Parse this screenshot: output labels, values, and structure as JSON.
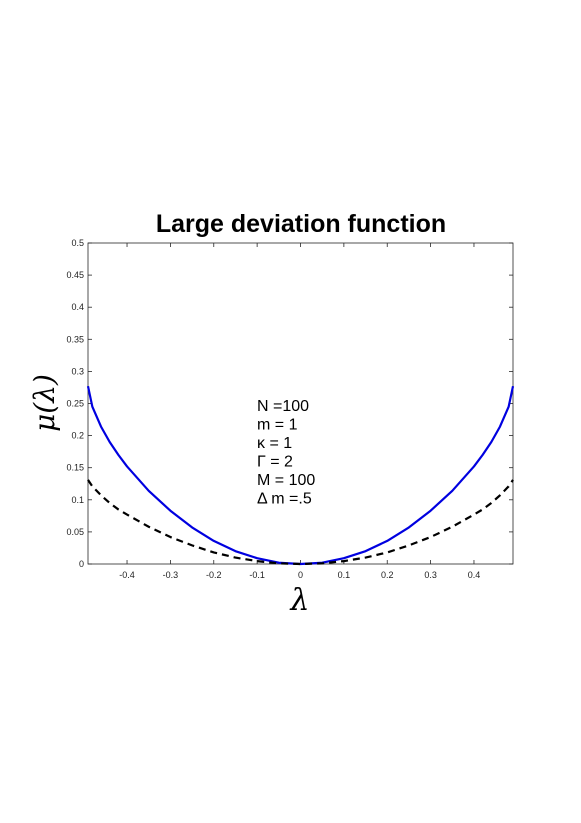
{
  "chart_data": {
    "type": "line",
    "title": "Large deviation function",
    "xlabel": "λ",
    "ylabel": "μ(λ)",
    "xlim": [
      -0.49,
      0.49
    ],
    "ylim": [
      0,
      0.5
    ],
    "xticks": [
      -0.4,
      -0.3,
      -0.2,
      -0.1,
      0,
      0.1,
      0.2,
      0.3,
      0.4
    ],
    "xtick_labels": [
      "-0.4",
      "-0.3",
      "-0.2",
      "-0.1",
      "0",
      "0.1",
      "0.2",
      "0.3",
      "0.4"
    ],
    "yticks": [
      0,
      0.05,
      0.1,
      0.15,
      0.2,
      0.25,
      0.3,
      0.35,
      0.4,
      0.45,
      0.5
    ],
    "ytick_labels": [
      "0",
      "0.05",
      "0.1",
      "0.15",
      "0.2",
      "0.25",
      "0.3",
      "0.35",
      "0.4",
      "0.45",
      "0.5"
    ],
    "grid": false,
    "series": [
      {
        "style": "solid",
        "color": "#0000e0",
        "x": [
          -0.49,
          -0.48,
          -0.46,
          -0.44,
          -0.42,
          -0.4,
          -0.35,
          -0.3,
          -0.25,
          -0.2,
          -0.15,
          -0.1,
          -0.05,
          0,
          0.05,
          0.1,
          0.15,
          0.2,
          0.25,
          0.3,
          0.35,
          0.4,
          0.42,
          0.44,
          0.46,
          0.48,
          0.49
        ],
        "y": [
          0.277,
          0.245,
          0.214,
          0.19,
          0.17,
          0.152,
          0.114,
          0.083,
          0.057,
          0.036,
          0.02,
          0.009,
          0.002,
          0,
          0.002,
          0.009,
          0.02,
          0.036,
          0.057,
          0.083,
          0.114,
          0.152,
          0.17,
          0.19,
          0.214,
          0.245,
          0.277
        ]
      },
      {
        "style": "dashed",
        "color": "#000000",
        "x": [
          -0.49,
          -0.48,
          -0.46,
          -0.44,
          -0.42,
          -0.4,
          -0.35,
          -0.3,
          -0.25,
          -0.2,
          -0.15,
          -0.1,
          -0.05,
          0,
          0.05,
          0.1,
          0.15,
          0.2,
          0.25,
          0.3,
          0.35,
          0.4,
          0.42,
          0.44,
          0.46,
          0.48,
          0.49
        ],
        "y": [
          0.131,
          0.121,
          0.107,
          0.095,
          0.085,
          0.077,
          0.058,
          0.042,
          0.029,
          0.018,
          0.01,
          0.0045,
          0.001,
          0,
          0.001,
          0.0045,
          0.01,
          0.018,
          0.029,
          0.042,
          0.058,
          0.077,
          0.085,
          0.095,
          0.107,
          0.121,
          0.131
        ]
      }
    ],
    "annotations": [
      "N =100",
      "m = 1",
      "κ = 1",
      "Γ = 2",
      "M = 100",
      "Δ m =.5"
    ],
    "annotation_position": "center"
  }
}
